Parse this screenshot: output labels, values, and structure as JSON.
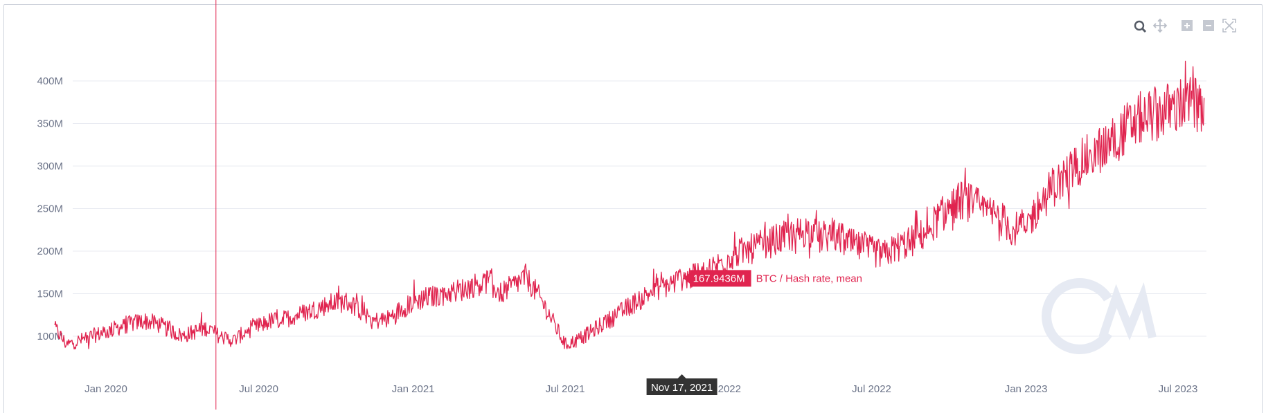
{
  "chart_data": {
    "type": "line",
    "title": "",
    "xlabel": "",
    "ylabel": "",
    "x_range": [
      "2019-11-01",
      "2023-08-04"
    ],
    "ylim": [
      50,
      450
    ],
    "y_ticks": [
      {
        "value": 100,
        "label": "100M"
      },
      {
        "value": 150,
        "label": "150M"
      },
      {
        "value": 200,
        "label": "200M"
      },
      {
        "value": 250,
        "label": "250M"
      },
      {
        "value": 300,
        "label": "300M"
      },
      {
        "value": 350,
        "label": "350M"
      },
      {
        "value": 400,
        "label": "400M"
      }
    ],
    "x_ticks": [
      {
        "date": "2020-01-01",
        "label": "Jan 2020"
      },
      {
        "date": "2020-07-01",
        "label": "Jul 2020"
      },
      {
        "date": "2021-01-01",
        "label": "Jan 2021"
      },
      {
        "date": "2021-07-01",
        "label": "Jul 2021"
      },
      {
        "date": "2022-01-01",
        "label": "Jan 2022"
      },
      {
        "date": "2022-07-01",
        "label": "Jul 2022"
      },
      {
        "date": "2023-01-01",
        "label": "Jan 2023"
      },
      {
        "date": "2023-07-01",
        "label": "Jul 2023"
      }
    ],
    "grid": true,
    "series": [
      {
        "name": "BTC / Hash rate, mean",
        "color": "#e0244f",
        "unit": "M",
        "points": [
          [
            "2019-11-01",
            110
          ],
          [
            "2019-11-15",
            90
          ],
          [
            "2019-12-01",
            95
          ],
          [
            "2019-12-15",
            100
          ],
          [
            "2020-01-01",
            105
          ],
          [
            "2020-01-15",
            110
          ],
          [
            "2020-02-01",
            115
          ],
          [
            "2020-02-15",
            118
          ],
          [
            "2020-03-01",
            115
          ],
          [
            "2020-03-15",
            108
          ],
          [
            "2020-04-01",
            100
          ],
          [
            "2020-04-15",
            105
          ],
          [
            "2020-05-01",
            110
          ],
          [
            "2020-05-15",
            100
          ],
          [
            "2020-06-01",
            95
          ],
          [
            "2020-06-15",
            105
          ],
          [
            "2020-07-01",
            112
          ],
          [
            "2020-07-15",
            118
          ],
          [
            "2020-08-01",
            120
          ],
          [
            "2020-08-15",
            125
          ],
          [
            "2020-09-01",
            130
          ],
          [
            "2020-09-15",
            135
          ],
          [
            "2020-10-01",
            140
          ],
          [
            "2020-10-15",
            140
          ],
          [
            "2020-11-01",
            130
          ],
          [
            "2020-11-15",
            118
          ],
          [
            "2020-12-01",
            120
          ],
          [
            "2020-12-15",
            130
          ],
          [
            "2021-01-01",
            140
          ],
          [
            "2021-01-15",
            145
          ],
          [
            "2021-02-01",
            148
          ],
          [
            "2021-02-15",
            152
          ],
          [
            "2021-03-01",
            155
          ],
          [
            "2021-03-15",
            160
          ],
          [
            "2021-04-01",
            165
          ],
          [
            "2021-04-15",
            150
          ],
          [
            "2021-05-01",
            160
          ],
          [
            "2021-05-15",
            170
          ],
          [
            "2021-06-01",
            145
          ],
          [
            "2021-06-15",
            120
          ],
          [
            "2021-07-01",
            90
          ],
          [
            "2021-07-15",
            95
          ],
          [
            "2021-08-01",
            105
          ],
          [
            "2021-08-15",
            115
          ],
          [
            "2021-09-01",
            125
          ],
          [
            "2021-09-15",
            135
          ],
          [
            "2021-10-01",
            145
          ],
          [
            "2021-10-15",
            155
          ],
          [
            "2021-11-01",
            160
          ],
          [
            "2021-11-17",
            167.9436
          ],
          [
            "2021-12-01",
            170
          ],
          [
            "2021-12-15",
            175
          ],
          [
            "2022-01-01",
            185
          ],
          [
            "2022-01-15",
            195
          ],
          [
            "2022-02-01",
            200
          ],
          [
            "2022-02-15",
            205
          ],
          [
            "2022-03-01",
            210
          ],
          [
            "2022-03-15",
            215
          ],
          [
            "2022-04-01",
            220
          ],
          [
            "2022-04-15",
            225
          ],
          [
            "2022-05-01",
            215
          ],
          [
            "2022-05-15",
            220
          ],
          [
            "2022-06-01",
            210
          ],
          [
            "2022-06-15",
            205
          ],
          [
            "2022-07-01",
            200
          ],
          [
            "2022-07-15",
            195
          ],
          [
            "2022-08-01",
            205
          ],
          [
            "2022-08-15",
            210
          ],
          [
            "2022-09-01",
            220
          ],
          [
            "2022-09-15",
            235
          ],
          [
            "2022-10-01",
            250
          ],
          [
            "2022-10-15",
            260
          ],
          [
            "2022-11-01",
            255
          ],
          [
            "2022-11-15",
            245
          ],
          [
            "2022-12-01",
            240
          ],
          [
            "2022-12-15",
            225
          ],
          [
            "2023-01-01",
            230
          ],
          [
            "2023-01-15",
            250
          ],
          [
            "2023-02-01",
            275
          ],
          [
            "2023-02-15",
            285
          ],
          [
            "2023-03-01",
            300
          ],
          [
            "2023-03-15",
            310
          ],
          [
            "2023-04-01",
            320
          ],
          [
            "2023-04-15",
            330
          ],
          [
            "2023-05-01",
            345
          ],
          [
            "2023-05-15",
            355
          ],
          [
            "2023-06-01",
            360
          ],
          [
            "2023-06-15",
            365
          ],
          [
            "2023-07-01",
            370
          ],
          [
            "2023-07-15",
            375
          ],
          [
            "2023-08-01",
            365
          ]
        ]
      }
    ],
    "tooltip": {
      "date_label": "Nov 17, 2021",
      "date": "2021-11-17",
      "value_label": "167.9436M",
      "value": 167.9436,
      "series_label": "BTC / Hash rate, mean"
    },
    "marker_line_date": "2020-05-11",
    "colors": {
      "line": "#e0244f",
      "marker": "#e0244f",
      "tooltip_bg": "#333333",
      "watermark": "#e6eaf3"
    }
  },
  "toolbar": {
    "icons": [
      "zoom-icon",
      "pan-icon",
      "zoom-in-icon",
      "zoom-out-icon",
      "reset-zoom-icon"
    ]
  },
  "watermark": {
    "icon": "coin-metrics-logo-icon"
  }
}
